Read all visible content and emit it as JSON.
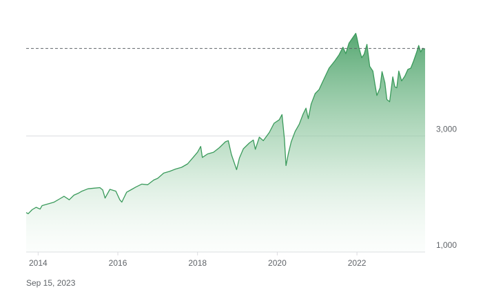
{
  "chart_data": {
    "type": "area",
    "title": "",
    "xlabel": "",
    "ylabel": "",
    "x_ticks": [
      "2014",
      "2016",
      "2018",
      "2020",
      "2022"
    ],
    "y_ticks": [
      "1,000",
      "3,000"
    ],
    "y_tick_values": [
      1000,
      3000
    ],
    "reference_line": 4510,
    "xlim": [
      2013.7,
      2023.71
    ],
    "ylim": [
      1000,
      4870
    ],
    "grid": "horizontal",
    "color": "#3a9a5b",
    "series": [
      {
        "points": [
          [
            2013.7,
            1680
          ],
          [
            2013.75,
            1660
          ],
          [
            2013.85,
            1730
          ],
          [
            2013.95,
            1770
          ],
          [
            2014.05,
            1740
          ],
          [
            2014.1,
            1800
          ],
          [
            2014.25,
            1830
          ],
          [
            2014.4,
            1860
          ],
          [
            2014.55,
            1920
          ],
          [
            2014.65,
            1960
          ],
          [
            2014.78,
            1900
          ],
          [
            2014.9,
            1980
          ],
          [
            2015.0,
            2010
          ],
          [
            2015.1,
            2050
          ],
          [
            2015.25,
            2090
          ],
          [
            2015.4,
            2100
          ],
          [
            2015.55,
            2110
          ],
          [
            2015.62,
            2070
          ],
          [
            2015.68,
            1930
          ],
          [
            2015.8,
            2080
          ],
          [
            2015.95,
            2050
          ],
          [
            2016.05,
            1900
          ],
          [
            2016.1,
            1860
          ],
          [
            2016.22,
            2030
          ],
          [
            2016.35,
            2080
          ],
          [
            2016.45,
            2120
          ],
          [
            2016.6,
            2170
          ],
          [
            2016.75,
            2160
          ],
          [
            2016.9,
            2240
          ],
          [
            2017.0,
            2270
          ],
          [
            2017.15,
            2360
          ],
          [
            2017.3,
            2390
          ],
          [
            2017.45,
            2430
          ],
          [
            2017.6,
            2460
          ],
          [
            2017.75,
            2520
          ],
          [
            2017.9,
            2640
          ],
          [
            2018.0,
            2720
          ],
          [
            2018.08,
            2820
          ],
          [
            2018.12,
            2630
          ],
          [
            2018.25,
            2690
          ],
          [
            2018.4,
            2720
          ],
          [
            2018.55,
            2800
          ],
          [
            2018.7,
            2900
          ],
          [
            2018.77,
            2920
          ],
          [
            2018.85,
            2680
          ],
          [
            2018.98,
            2420
          ],
          [
            2019.05,
            2620
          ],
          [
            2019.15,
            2780
          ],
          [
            2019.3,
            2880
          ],
          [
            2019.4,
            2930
          ],
          [
            2019.45,
            2770
          ],
          [
            2019.55,
            2980
          ],
          [
            2019.65,
            2920
          ],
          [
            2019.8,
            3060
          ],
          [
            2019.92,
            3220
          ],
          [
            2020.05,
            3280
          ],
          [
            2020.12,
            3370
          ],
          [
            2020.18,
            2950
          ],
          [
            2020.22,
            2490
          ],
          [
            2020.28,
            2700
          ],
          [
            2020.35,
            2900
          ],
          [
            2020.45,
            3080
          ],
          [
            2020.55,
            3200
          ],
          [
            2020.65,
            3380
          ],
          [
            2020.72,
            3480
          ],
          [
            2020.78,
            3300
          ],
          [
            2020.85,
            3550
          ],
          [
            2020.95,
            3730
          ],
          [
            2021.05,
            3800
          ],
          [
            2021.15,
            3950
          ],
          [
            2021.3,
            4170
          ],
          [
            2021.45,
            4300
          ],
          [
            2021.55,
            4400
          ],
          [
            2021.65,
            4530
          ],
          [
            2021.72,
            4420
          ],
          [
            2021.8,
            4600
          ],
          [
            2021.9,
            4700
          ],
          [
            2021.97,
            4770
          ],
          [
            2022.0,
            4690
          ],
          [
            2022.05,
            4520
          ],
          [
            2022.12,
            4350
          ],
          [
            2022.18,
            4410
          ],
          [
            2022.25,
            4580
          ],
          [
            2022.32,
            4200
          ],
          [
            2022.4,
            4120
          ],
          [
            2022.45,
            3900
          ],
          [
            2022.5,
            3700
          ],
          [
            2022.58,
            3830
          ],
          [
            2022.63,
            4110
          ],
          [
            2022.7,
            3920
          ],
          [
            2022.75,
            3630
          ],
          [
            2022.82,
            3590
          ],
          [
            2022.9,
            4020
          ],
          [
            2022.95,
            3850
          ],
          [
            2023.0,
            3830
          ],
          [
            2023.05,
            4120
          ],
          [
            2023.12,
            3950
          ],
          [
            2023.2,
            4030
          ],
          [
            2023.28,
            4150
          ],
          [
            2023.35,
            4170
          ],
          [
            2023.42,
            4290
          ],
          [
            2023.5,
            4450
          ],
          [
            2023.55,
            4560
          ],
          [
            2023.6,
            4450
          ],
          [
            2023.65,
            4510
          ],
          [
            2023.71,
            4500
          ]
        ]
      }
    ]
  },
  "caption": {
    "date": "Sep 15, 2023"
  }
}
